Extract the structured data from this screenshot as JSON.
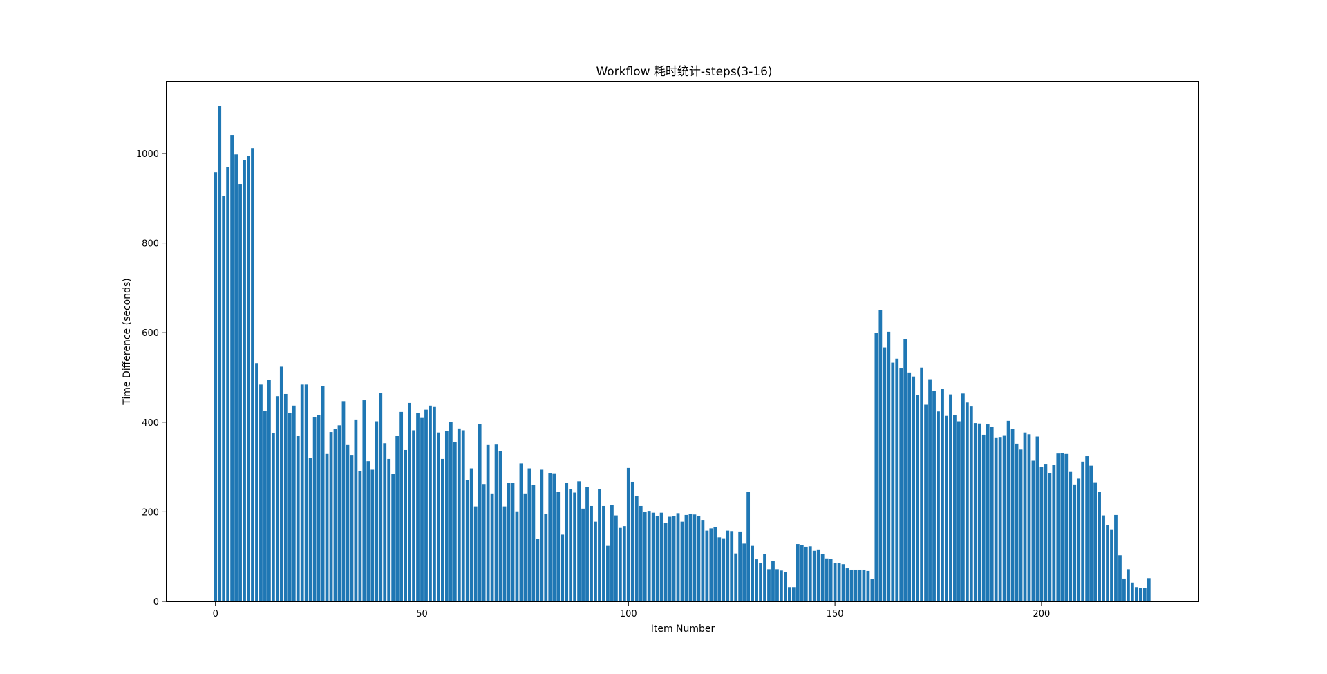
{
  "chart_data": {
    "type": "bar",
    "title": "Workflow 耗时统计-steps(3-16)",
    "xlabel": "Item Number",
    "ylabel": "Time Difference (seconds)",
    "xlim": [
      -12,
      238
    ],
    "ylim": [
      0,
      1162
    ],
    "xticks": [
      0,
      50,
      100,
      150,
      200
    ],
    "yticks": [
      0,
      200,
      400,
      600,
      800,
      1000
    ],
    "grid": false,
    "bar_color": "#1f77b4",
    "series": [
      {
        "x_start": 0,
        "values": [
          958,
          1105,
          905,
          970,
          1040,
          998,
          932,
          986,
          994,
          1012,
          532,
          484,
          425,
          494,
          376,
          458,
          524,
          463,
          420,
          437,
          370,
          484,
          484,
          320,
          412,
          416,
          481,
          329,
          378,
          385,
          393,
          447,
          349,
          327,
          406,
          291,
          449,
          313,
          294,
          402,
          465,
          353,
          318,
          284,
          369,
          423,
          338,
          443,
          382,
          420,
          411,
          428,
          437,
          434,
          377,
          318,
          380,
          401,
          355,
          386,
          382,
          271,
          297,
          212,
          396,
          262,
          349,
          241,
          350,
          336,
          212,
          264,
          264,
          201,
          308,
          241,
          297,
          260,
          140,
          294,
          196,
          287,
          286,
          244,
          149,
          264,
          251,
          243,
          268,
          207,
          255,
          213,
          178,
          251,
          213,
          124,
          216,
          192,
          164,
          168,
          298,
          267,
          236,
          213,
          200,
          202,
          198,
          191,
          198,
          175,
          189,
          190,
          197,
          178,
          193,
          196,
          194,
          191,
          182,
          158,
          163,
          166,
          143,
          141,
          158,
          157,
          107,
          156,
          129,
          244,
          124,
          94,
          85,
          105,
          72,
          90,
          72,
          69,
          66,
          32,
          32,
          128,
          125,
          122,
          123,
          113,
          116,
          105,
          96,
          95,
          85,
          86,
          83,
          74,
          71,
          71,
          71,
          71,
          68,
          50,
          600,
          650,
          567,
          602,
          533,
          542,
          520,
          585,
          511,
          502,
          460,
          522,
          439,
          496,
          470,
          424,
          475,
          414,
          462,
          416,
          402,
          464,
          444,
          435,
          398,
          397,
          372,
          395,
          390,
          366,
          367,
          371,
          403,
          385,
          352,
          339,
          377,
          373,
          314,
          368,
          300,
          307,
          287,
          304,
          330,
          331,
          329,
          289,
          261,
          274,
          312,
          324,
          303,
          266,
          244,
          192,
          170,
          161,
          193,
          103,
          51,
          72,
          42,
          32,
          30,
          30,
          52
        ]
      }
    ]
  }
}
